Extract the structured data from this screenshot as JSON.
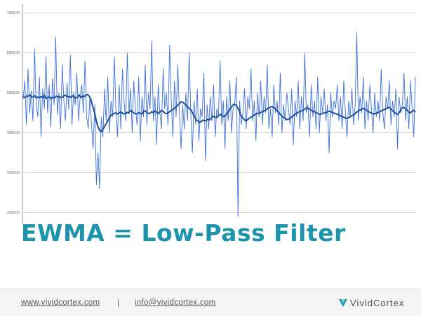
{
  "chart_data": {
    "type": "line",
    "y_ticks": [
      2000,
      3000,
      4000,
      5000,
      6000,
      7000
    ],
    "y_tick_labels": [
      "2000.00",
      "3000.00",
      "4000.00",
      "5000.00",
      "6000.00",
      "7000.00"
    ],
    "ylim": [
      2000,
      7000
    ],
    "grid": true,
    "series": [
      {
        "color": "#3b6fe0",
        "values": [
          4850,
          5300,
          4200,
          5600,
          4500,
          5050,
          4300,
          6100,
          4700,
          4400,
          5400,
          3900,
          5100,
          4600,
          5900,
          4500,
          5200,
          4150,
          5350,
          4700,
          6400,
          4450,
          5000,
          4100,
          5700,
          4800,
          4300,
          5250,
          4600,
          5950,
          4200,
          5000,
          4700,
          5500,
          4300,
          4900,
          5200,
          4500,
          5800,
          4400,
          4100,
          4900,
          4200,
          3600,
          4700,
          2700,
          3500,
          2600,
          4400,
          3900,
          5100,
          4300,
          5400,
          4000,
          4800,
          4400,
          5900,
          4600,
          3900,
          5200,
          4100,
          5600,
          4800,
          4300,
          6000,
          4500,
          5100,
          4000,
          5300,
          4600,
          4200,
          5400,
          3800,
          4900,
          4400,
          5700,
          4200,
          5000,
          4600,
          6300,
          4300,
          4900,
          3700,
          5200,
          4500,
          4100,
          5600,
          4600,
          5000,
          4200,
          6200,
          4800,
          3900,
          5300,
          4400,
          5700,
          4500,
          3600,
          4700,
          4100,
          5000,
          4300,
          6000,
          4500,
          3500,
          4800,
          4200,
          5100,
          3800,
          4600,
          4400,
          5500,
          3300,
          4700,
          4100,
          4900,
          4300,
          5200,
          3900,
          4600,
          4400,
          5800,
          4200,
          4800,
          3600,
          4900,
          4300,
          5300,
          4000,
          4600,
          4700,
          5400,
          1900,
          4800,
          4200,
          4500,
          5100,
          4100,
          4900,
          4600,
          5600,
          4300,
          4800,
          3800,
          5000,
          4400,
          5300,
          4200,
          4900,
          4500,
          5700,
          4100,
          4600,
          3900,
          5200,
          4500,
          4800,
          4200,
          5500,
          4000,
          4700,
          4300,
          5000,
          4600,
          4200,
          5100,
          3700,
          4800,
          4400,
          5300,
          4100,
          4900,
          4300,
          6000,
          4500,
          4700,
          3900,
          5200,
          4400,
          4800,
          4100,
          5400,
          4000,
          4900,
          4500,
          5100,
          4300,
          4700,
          3500,
          5000,
          4400,
          4800,
          4600,
          5200,
          4300,
          4900,
          4100,
          5300,
          4500,
          3900,
          4800,
          4400,
          5100,
          4200,
          4700,
          6500,
          4300,
          4900,
          4500,
          5400,
          4100,
          4800,
          4300,
          5200,
          4600,
          4000,
          5000,
          4400,
          4800,
          4300,
          5600,
          4500,
          4100,
          4900,
          4600,
          5300,
          4200,
          4800,
          4400,
          5100,
          3600,
          4900,
          4500,
          4700,
          5500,
          4300,
          4900,
          4100,
          5300,
          4600,
          3900,
          5400
        ]
      },
      {
        "color": "#1b5096",
        "values": [
          4900,
          4880,
          4920,
          4910,
          4950,
          4900,
          4890,
          4930,
          4870,
          4900,
          4880,
          4910,
          4870,
          4940,
          4860,
          4880,
          4900,
          4860,
          4890,
          4870,
          4920,
          4900,
          4910,
          4880,
          4890,
          4940,
          4930,
          4900,
          4910,
          4880,
          4930,
          4900,
          4870,
          4890,
          4950,
          4880,
          4920,
          4900,
          4940,
          4960,
          4920,
          4850,
          4700,
          4560,
          4380,
          4200,
          4100,
          4030,
          4060,
          4130,
          4200,
          4270,
          4350,
          4420,
          4460,
          4480,
          4500,
          4470,
          4490,
          4520,
          4500,
          4470,
          4480,
          4510,
          4490,
          4560,
          4540,
          4500,
          4480,
          4470,
          4500,
          4490,
          4470,
          4520,
          4550,
          4510,
          4480,
          4490,
          4530,
          4500,
          4550,
          4520,
          4480,
          4520,
          4560,
          4540,
          4490,
          4480,
          4500,
          4530,
          4560,
          4590,
          4620,
          4660,
          4700,
          4740,
          4780,
          4760,
          4720,
          4680,
          4640,
          4600,
          4560,
          4480,
          4400,
          4320,
          4300,
          4260,
          4280,
          4320,
          4300,
          4310,
          4340,
          4320,
          4360,
          4420,
          4400,
          4380,
          4400,
          4440,
          4460,
          4420,
          4400,
          4450,
          4500,
          4560,
          4620,
          4680,
          4720,
          4700,
          4640,
          4560,
          4440,
          4380,
          4340,
          4300,
          4320,
          4360,
          4380,
          4410,
          4440,
          4460,
          4490,
          4480,
          4510,
          4520,
          4550,
          4560,
          4600,
          4620,
          4640,
          4660,
          4630,
          4600,
          4560,
          4510,
          4460,
          4420,
          4380,
          4360,
          4330,
          4340,
          4360,
          4400,
          4430,
          4460,
          4490,
          4510,
          4540,
          4550,
          4560,
          4600,
          4620,
          4610,
          4590,
          4560,
          4540,
          4520,
          4500,
          4480,
          4460,
          4470,
          4490,
          4500,
          4510,
          4530,
          4540,
          4520,
          4500,
          4490,
          4470,
          4460,
          4440,
          4410,
          4400,
          4380,
          4360,
          4370,
          4390,
          4410,
          4440,
          4460,
          4500,
          4540,
          4560,
          4580,
          4600,
          4610,
          4570,
          4540,
          4520,
          4500,
          4480,
          4470,
          4490,
          4500,
          4520,
          4540,
          4560,
          4580,
          4600,
          4620,
          4640,
          4600,
          4560,
          4520,
          4490,
          4460,
          4500,
          4560,
          4620,
          4640,
          4600,
          4560,
          4520,
          4500,
          4540,
          4560,
          4520
        ]
      }
    ]
  },
  "title": "EWMA = Low-Pass Filter",
  "footer": {
    "website": "www.vividcortex.com",
    "separator": "|",
    "email": "info@vividcortex.com",
    "brand_name": "VividCortex",
    "brand_icon": "vividcortex-logo-icon",
    "accent_color": "#1c95ac"
  }
}
